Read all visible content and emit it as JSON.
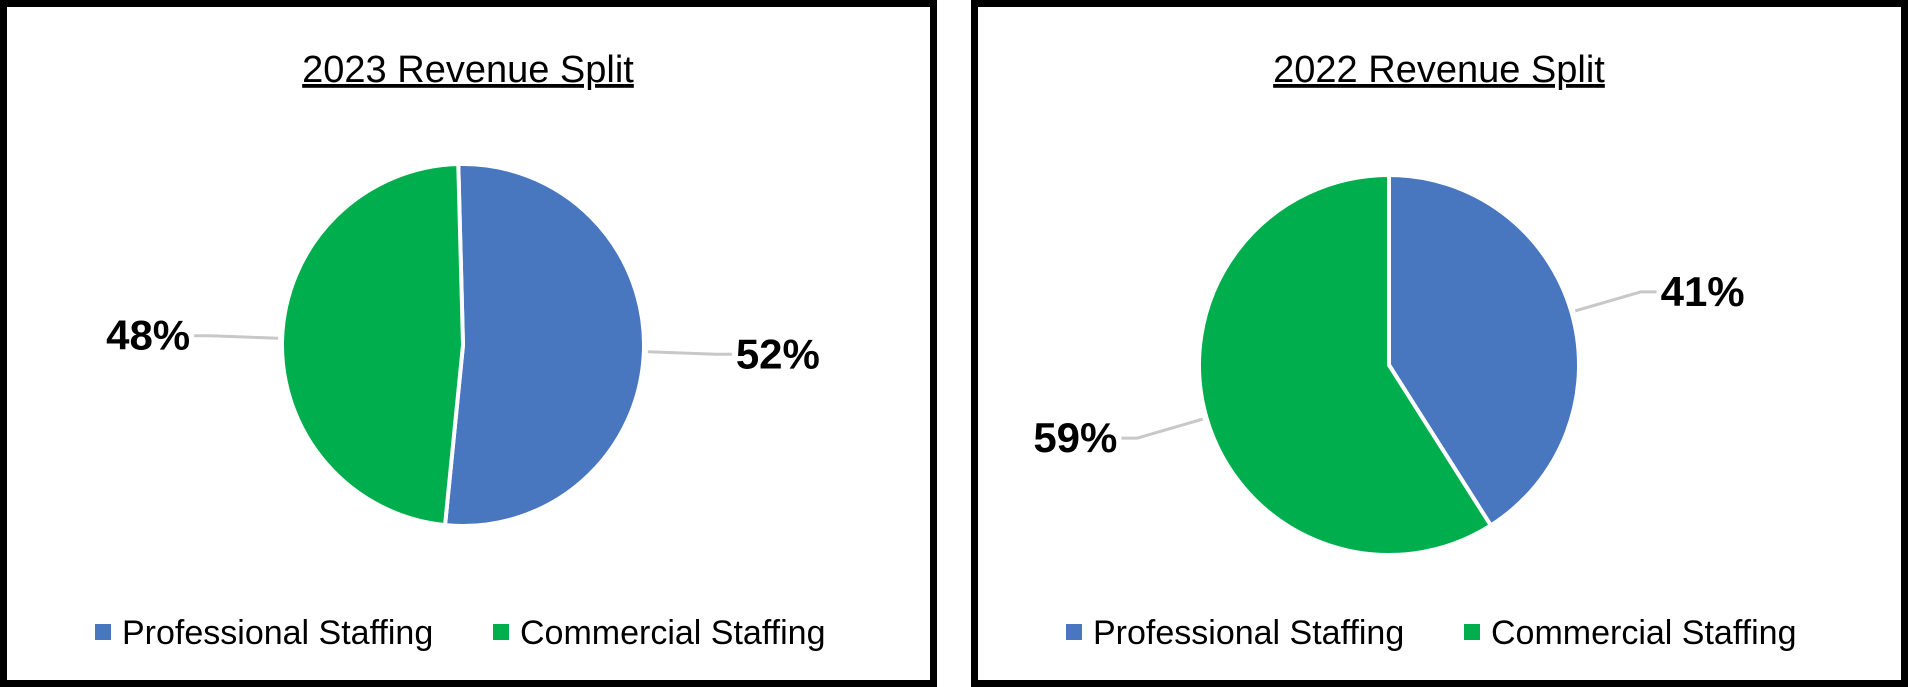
{
  "chart_data": [
    {
      "type": "pie",
      "title": "2023 Revenue Split",
      "categories": [
        "Professional Staffing",
        "Commercial Staffing"
      ],
      "values": [
        52,
        48
      ],
      "labels": [
        "52%",
        "48%"
      ],
      "colors": [
        "#4876BF",
        "#00AE4E"
      ],
      "legend": "bottom"
    },
    {
      "type": "pie",
      "title": "2022 Revenue Split",
      "categories": [
        "Professional Staffing",
        "Commercial Staffing"
      ],
      "values": [
        41,
        59
      ],
      "labels": [
        "41%",
        "59%"
      ],
      "colors": [
        "#4876BF",
        "#00AE4E"
      ],
      "legend": "bottom"
    }
  ]
}
